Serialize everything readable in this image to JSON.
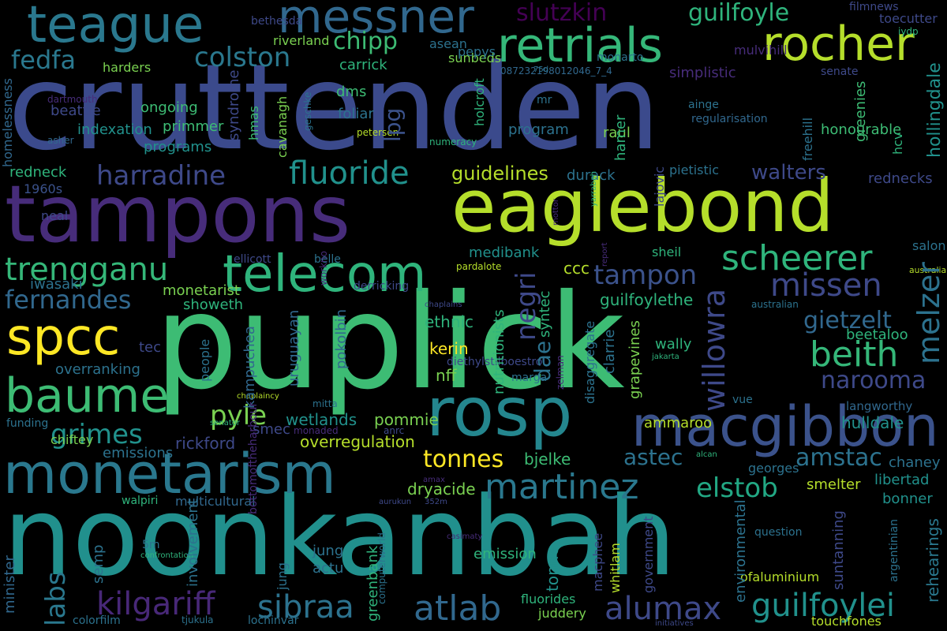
{
  "palette": [
    "#440154",
    "#472c7a",
    "#3b518b",
    "#2c718e",
    "#21908d",
    "#27ad81",
    "#5cc863",
    "#aadc32",
    "#fde725"
  ],
  "words": [
    {
      "text": "cruttenden",
      "color": "#3b4a8c"
    },
    {
      "text": "puplick",
      "color": "#3dbc74"
    },
    {
      "text": "noonkanbah",
      "color": "#21908d"
    },
    {
      "text": "tampons",
      "color": "#472c7a"
    },
    {
      "text": "eaglebond",
      "color": "#b5de2b"
    },
    {
      "text": "rosp",
      "color": "#24868e"
    },
    {
      "text": "macgibbon",
      "color": "#3b528b"
    },
    {
      "text": "monetarism",
      "color": "#2a788e"
    },
    {
      "text": "telecom",
      "color": "#2fb47c"
    },
    {
      "text": "teague",
      "color": "#2a788e"
    },
    {
      "text": "messner",
      "color": "#31688e"
    },
    {
      "text": "retrials",
      "color": "#35b779"
    },
    {
      "text": "rocher",
      "color": "#b5de2b"
    },
    {
      "text": "spcc",
      "color": "#fde725"
    },
    {
      "text": "baume",
      "color": "#3dbc74"
    },
    {
      "text": "scheerer",
      "color": "#2fb47c"
    },
    {
      "text": "martinez",
      "color": "#2a788e"
    },
    {
      "text": "atlab",
      "color": "#31688e"
    },
    {
      "text": "alumax",
      "color": "#3e4989"
    },
    {
      "text": "guilfoylei",
      "color": "#21918c"
    },
    {
      "text": "kilgariff",
      "color": "#482878"
    },
    {
      "text": "sibraa",
      "color": "#2c728e"
    },
    {
      "text": "beith",
      "color": "#35b779"
    },
    {
      "text": "trengganu",
      "color": "#35b779"
    },
    {
      "text": "fernandes",
      "color": "#31688e"
    },
    {
      "text": "fluoride",
      "color": "#21918c"
    },
    {
      "text": "harradine",
      "color": "#3e4989"
    },
    {
      "text": "colston",
      "color": "#2a788e"
    },
    {
      "text": "fedfa",
      "color": "#2a788e"
    },
    {
      "text": "missen",
      "color": "#3e4989"
    },
    {
      "text": "negri",
      "color": "#3e4989"
    },
    {
      "text": "willowra",
      "color": "#3e4989"
    },
    {
      "text": "pyle",
      "color": "#7ad151"
    },
    {
      "text": "grimes",
      "color": "#21918c"
    },
    {
      "text": "tonnes",
      "color": "#fde725"
    },
    {
      "text": "elstob",
      "color": "#22a884"
    },
    {
      "text": "guilfoyle",
      "color": "#2fb47c"
    },
    {
      "text": "slutzkin",
      "color": "#440154"
    },
    {
      "text": "melzer",
      "color": "#2c728e"
    },
    {
      "text": "gietzelt",
      "color": "#31688e"
    },
    {
      "text": "narooma",
      "color": "#3e4989"
    },
    {
      "text": "tampon",
      "color": "#3b528b"
    },
    {
      "text": "amstac",
      "color": "#2c728e"
    },
    {
      "text": "labs",
      "color": "#2a788e"
    },
    {
      "text": "chipp",
      "color": "#3dbc74"
    },
    {
      "text": "walters",
      "color": "#3e4989"
    },
    {
      "text": "guidelines",
      "color": "#b5de2b"
    },
    {
      "text": "astec",
      "color": "#2c728e"
    },
    {
      "text": "dae",
      "color": "#2c728e"
    },
    {
      "text": "lpg",
      "color": "#3b528b"
    },
    {
      "text": "hollingdale",
      "color": "#21918c"
    },
    {
      "text": "tonne",
      "color": "#21918c"
    },
    {
      "text": "bonner",
      "color": "#21918c"
    },
    {
      "text": "libertad",
      "color": "#21918c"
    },
    {
      "text": "chaney",
      "color": "#2c728e"
    },
    {
      "text": "rehearings",
      "color": "#2a788e"
    },
    {
      "text": "overregulation",
      "color": "#b5de2b"
    },
    {
      "text": "wetlands",
      "color": "#21918c"
    },
    {
      "text": "pommie",
      "color": "#7ad151"
    },
    {
      "text": "rickford",
      "color": "#3e4989"
    },
    {
      "text": "emissions",
      "color": "#2c728e"
    },
    {
      "text": "dryacide",
      "color": "#7ad151"
    },
    {
      "text": "bjelke",
      "color": "#3dbc74"
    },
    {
      "text": "ammaroo",
      "color": "#b5de2b"
    },
    {
      "text": "guilfoylethe",
      "color": "#2fb47c"
    },
    {
      "text": "ethnic",
      "color": "#2fb47c"
    },
    {
      "text": "kerin",
      "color": "#fde725"
    },
    {
      "text": "nff",
      "color": "#7ad151"
    },
    {
      "text": "nutritionists",
      "color": "#2fb47c"
    },
    {
      "text": "syntec",
      "color": "#2fb47c"
    },
    {
      "text": "ccc",
      "color": "#b5de2b"
    },
    {
      "text": "medibank",
      "color": "#21918c"
    },
    {
      "text": "hulldale",
      "color": "#21918c"
    },
    {
      "text": "langworthy",
      "color": "#31688e"
    },
    {
      "text": "wally",
      "color": "#2fb47c"
    },
    {
      "text": "beetaloo",
      "color": "#2fb47c"
    },
    {
      "text": "grapevines",
      "color": "#7ad151"
    },
    {
      "text": "clarrie",
      "color": "#2c728e"
    },
    {
      "text": "disaggregate",
      "color": "#2c728e"
    },
    {
      "text": "overranking",
      "color": "#2c728e"
    },
    {
      "text": "people",
      "color": "#2c728e"
    },
    {
      "text": "kampuchea",
      "color": "#31688e"
    },
    {
      "text": "uruguayan",
      "color": "#31688e"
    },
    {
      "text": "pokolbin",
      "color": "#31688e"
    },
    {
      "text": "iwasaki",
      "color": "#2c728e"
    },
    {
      "text": "monetarist",
      "color": "#7ad151"
    },
    {
      "text": "showeth",
      "color": "#2fb47c"
    },
    {
      "text": "tec",
      "color": "#3e4989"
    },
    {
      "text": "neal",
      "color": "#3e4989"
    },
    {
      "text": "1960s",
      "color": "#3b528b"
    },
    {
      "text": "redneck",
      "color": "#2fb47c"
    },
    {
      "text": "homelessness",
      "color": "#31688e"
    },
    {
      "text": "rednecks",
      "color": "#3e4989"
    },
    {
      "text": "durack",
      "color": "#2c728e"
    },
    {
      "text": "raul",
      "color": "#7ad151"
    },
    {
      "text": "hamer",
      "color": "#2fb47c"
    },
    {
      "text": "program",
      "color": "#2c728e"
    },
    {
      "text": "holcroft",
      "color": "#2fb47c"
    },
    {
      "text": "syndrome",
      "color": "#3e4989"
    },
    {
      "text": "hmas",
      "color": "#3dbc74"
    },
    {
      "text": "cavanagh",
      "color": "#7ad151"
    },
    {
      "text": "mpda",
      "color": "#2fb47c"
    },
    {
      "text": "primmer",
      "color": "#3dbc74"
    },
    {
      "text": "ongoing",
      "color": "#3dbc74"
    },
    {
      "text": "programs",
      "color": "#21918c"
    },
    {
      "text": "beattie",
      "color": "#3e4989"
    },
    {
      "text": "indexation",
      "color": "#21918c"
    },
    {
      "text": "harders",
      "color": "#7ad151"
    },
    {
      "text": "carrick",
      "color": "#2fb47c"
    },
    {
      "text": "riverland",
      "color": "#7ad151"
    },
    {
      "text": "asean",
      "color": "#2c728e"
    },
    {
      "text": "sunbeds",
      "color": "#7ad151"
    },
    {
      "text": "pepys",
      "color": "#2c728e"
    },
    {
      "text": "dms",
      "color": "#3dbc74"
    },
    {
      "text": "foliar",
      "color": "#2c728e"
    },
    {
      "text": "monarto",
      "color": "#2c728e"
    },
    {
      "text": "mulvihill",
      "color": "#472c7a"
    },
    {
      "text": "toecutter",
      "color": "#3e4989"
    },
    {
      "text": "filmnews",
      "color": "#3e4989"
    },
    {
      "text": "iydp",
      "color": "#2fb47c"
    },
    {
      "text": "bethesda",
      "color": "#3e4989"
    },
    {
      "text": "dartmouth",
      "color": "#472c7a"
    },
    {
      "text": "asher",
      "color": "#31688e"
    },
    {
      "text": "simplistic",
      "color": "#472c7a"
    },
    {
      "text": "senate",
      "color": "#3e4989"
    },
    {
      "text": "087232198012046_7_4",
      "color": "#31688e"
    },
    {
      "text": "75d",
      "color": "#2c728e"
    },
    {
      "text": "mr",
      "color": "#2c728e"
    },
    {
      "text": "ainge",
      "color": "#2c728e"
    },
    {
      "text": "regularisation",
      "color": "#31688e"
    },
    {
      "text": "freehill",
      "color": "#2c728e"
    },
    {
      "text": "greenies",
      "color": "#3dbc74"
    },
    {
      "text": "hcv",
      "color": "#2fb47c"
    },
    {
      "text": "honourable",
      "color": "#3dbc74"
    },
    {
      "text": "lajovic",
      "color": "#3e4989"
    },
    {
      "text": "pietistic",
      "color": "#2c728e"
    },
    {
      "text": "geschke",
      "color": "#2c728e"
    },
    {
      "text": "petersen",
      "color": "#b5de2b"
    },
    {
      "text": "numeracy",
      "color": "#2fb47c"
    },
    {
      "text": "sheil",
      "color": "#2fb47c"
    },
    {
      "text": "salon",
      "color": "#2c728e"
    },
    {
      "text": "australia",
      "color": "#b5de2b"
    },
    {
      "text": "australian",
      "color": "#2c728e"
    },
    {
      "text": "derricking",
      "color": "#3e4989"
    },
    {
      "text": "chaplains",
      "color": "#3e4989"
    },
    {
      "text": "jakarta",
      "color": "#2fb47c"
    },
    {
      "text": "marga",
      "color": "#2c728e"
    },
    {
      "text": "zelman",
      "color": "#472c7a"
    },
    {
      "text": "diethylstilboestrol",
      "color": "#3e4989"
    },
    {
      "text": "belle",
      "color": "#2c728e"
    },
    {
      "text": "pardalote",
      "color": "#b5de2b"
    },
    {
      "text": "ellicott",
      "color": "#3e4989"
    },
    {
      "text": "workno",
      "color": "#472c7a"
    },
    {
      "text": "report",
      "color": "#472c7a"
    },
    {
      "text": "mottor",
      "color": "#472c7a"
    },
    {
      "text": "yarrabah",
      "color": "#2fb47c"
    },
    {
      "text": "mitta",
      "color": "#2c728e"
    },
    {
      "text": "chaplaincy",
      "color": "#b5de2b"
    },
    {
      "text": "monaded",
      "color": "#472c7a"
    },
    {
      "text": "anrc",
      "color": "#3e4989"
    },
    {
      "text": "smec",
      "color": "#3e4989"
    },
    {
      "text": "chiftey",
      "color": "#7ad151"
    },
    {
      "text": "funding",
      "color": "#2c728e"
    },
    {
      "text": "vue",
      "color": "#2c728e"
    },
    {
      "text": "senator",
      "color": "#2fb47c"
    },
    {
      "text": "georges",
      "color": "#2c728e"
    },
    {
      "text": "alcan",
      "color": "#2fb47c"
    },
    {
      "text": "smelter",
      "color": "#b5de2b"
    },
    {
      "text": "bottomoftheharbour",
      "color": "#472c7a"
    },
    {
      "text": "amax",
      "color": "#472c7a"
    },
    {
      "text": "352m",
      "color": "#3e4989"
    },
    {
      "text": "aurukun",
      "color": "#3e4989"
    },
    {
      "text": "walpiri",
      "color": "#2fb47c"
    },
    {
      "text": "multicultural",
      "color": "#31688e"
    },
    {
      "text": "semp",
      "color": "#2c728e"
    },
    {
      "text": "5m",
      "color": "#2c728e"
    },
    {
      "text": "confrontation",
      "color": "#2fb47c"
    },
    {
      "text": "minister",
      "color": "#31688e"
    },
    {
      "text": "involvement",
      "color": "#2c728e"
    },
    {
      "text": "jung",
      "color": "#2c728e"
    },
    {
      "text": "actu",
      "color": "#2c728e"
    },
    {
      "text": "greenbank",
      "color": "#2fb47c"
    },
    {
      "text": "computerworld",
      "color": "#2c728e"
    },
    {
      "text": "emission",
      "color": "#2fb47c"
    },
    {
      "text": "casimaty",
      "color": "#472c7a"
    },
    {
      "text": "macphee",
      "color": "#3e4989"
    },
    {
      "text": "whitlam",
      "color": "#b5de2b"
    },
    {
      "text": "government",
      "color": "#3e4989"
    },
    {
      "text": "environmental",
      "color": "#2c728e"
    },
    {
      "text": "suntanning",
      "color": "#3e4989"
    },
    {
      "text": "question",
      "color": "#2c728e"
    },
    {
      "text": "ofaluminium",
      "color": "#b5de2b"
    },
    {
      "text": "argentinian",
      "color": "#2c728e"
    },
    {
      "text": "fluorides",
      "color": "#2fb47c"
    },
    {
      "text": "juddery",
      "color": "#7ad151"
    },
    {
      "text": "colorfilm",
      "color": "#2c728e"
    },
    {
      "text": "tjukula",
      "color": "#2c728e"
    },
    {
      "text": "lochinvar",
      "color": "#2c728e"
    },
    {
      "text": "initiatives",
      "color": "#3e4989"
    },
    {
      "text": "touchfones",
      "color": "#b5de2b"
    }
  ]
}
